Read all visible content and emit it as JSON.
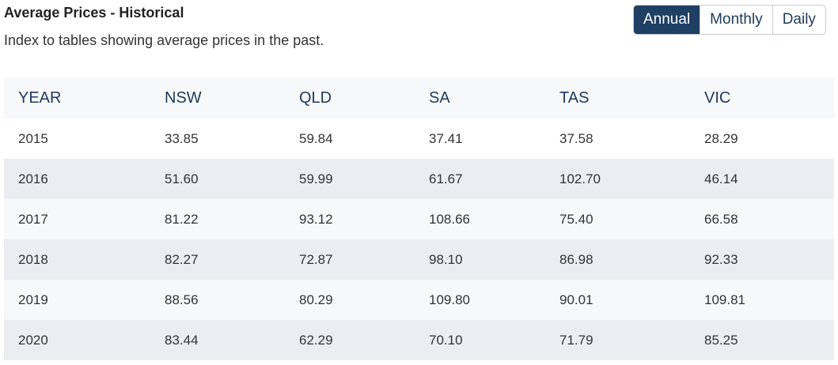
{
  "header": {
    "title": "Average Prices - Historical",
    "subtitle": "Index to tables showing average prices in the past."
  },
  "tabs": {
    "items": [
      "Annual",
      "Monthly",
      "Daily"
    ],
    "active": "Annual"
  },
  "table": {
    "columns": [
      "YEAR",
      "NSW",
      "QLD",
      "SA",
      "TAS",
      "VIC"
    ],
    "rows": [
      [
        "2015",
        "33.85",
        "59.84",
        "37.41",
        "37.58",
        "28.29"
      ],
      [
        "2016",
        "51.60",
        "59.99",
        "61.67",
        "102.70",
        "46.14"
      ],
      [
        "2017",
        "81.22",
        "93.12",
        "108.66",
        "75.40",
        "66.58"
      ],
      [
        "2018",
        "82.27",
        "72.87",
        "98.10",
        "86.98",
        "92.33"
      ],
      [
        "2019",
        "88.56",
        "80.29",
        "109.80",
        "90.01",
        "109.81"
      ],
      [
        "2020",
        "83.44",
        "62.29",
        "70.10",
        "71.79",
        "85.25"
      ]
    ]
  }
}
